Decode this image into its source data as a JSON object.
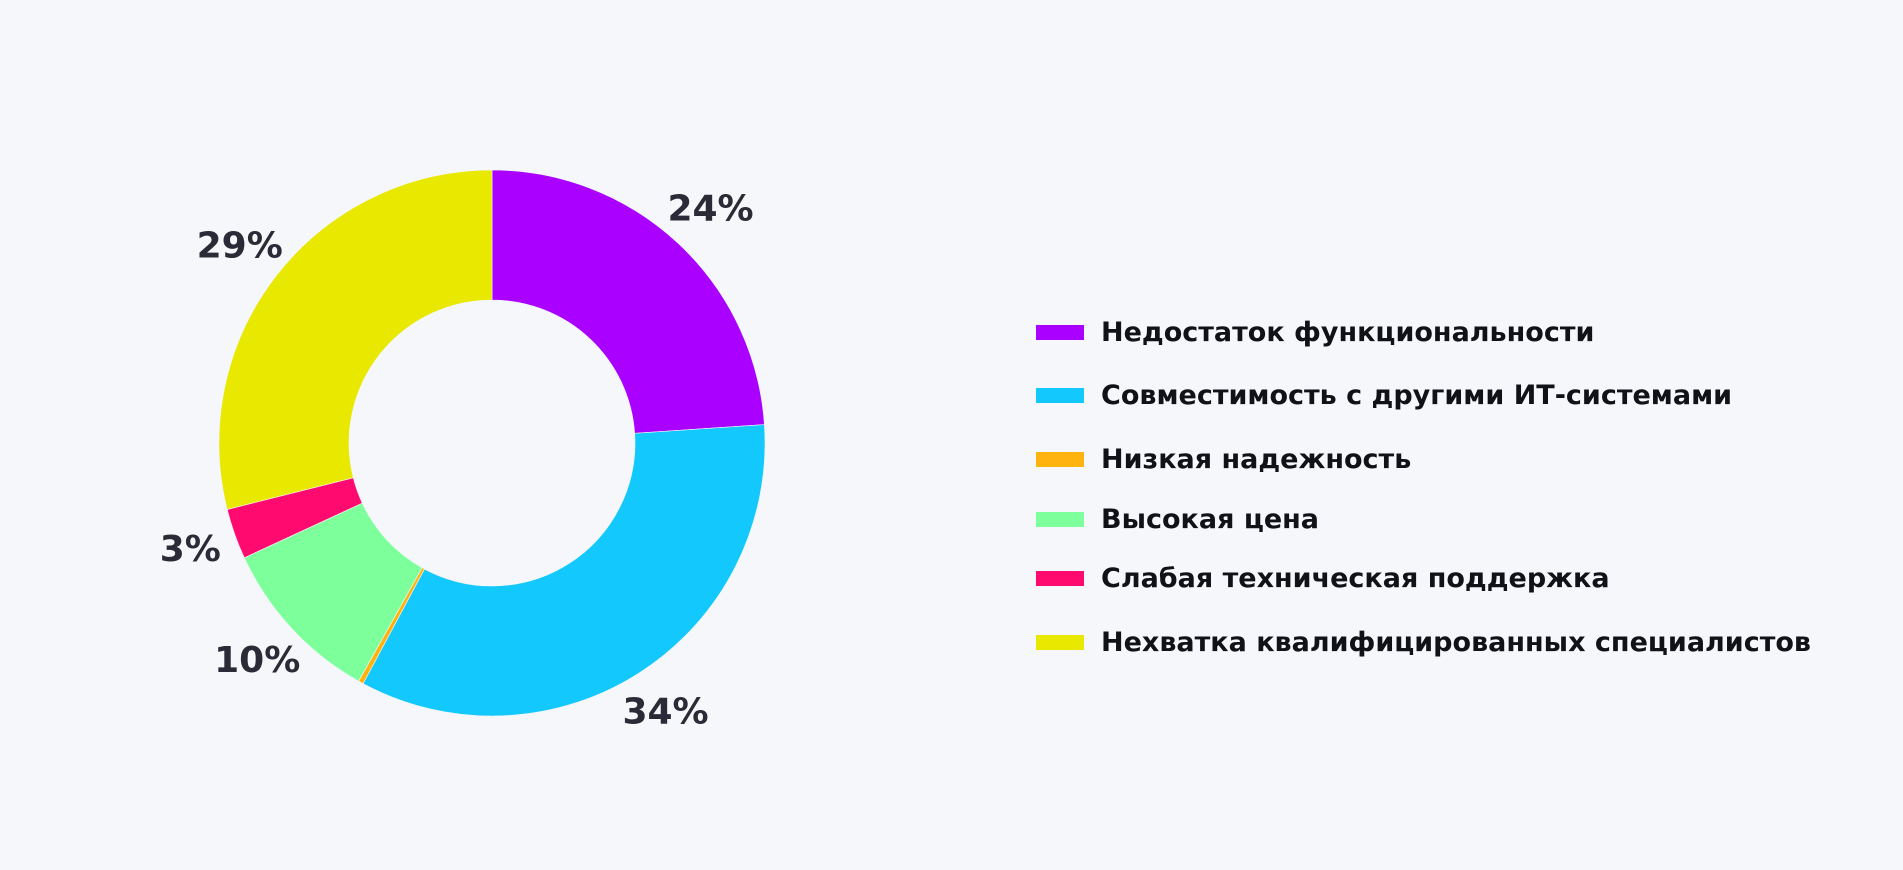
{
  "chart_data": {
    "type": "pie",
    "variant": "donut",
    "order": "clockwise from 12 o'clock",
    "series": [
      {
        "name": "Недостаток функциональности",
        "value": 24,
        "label": "24%",
        "color": "#aa00ff"
      },
      {
        "name": "Совместимость с другими ИТ-системами",
        "value": 34,
        "label": "34%",
        "color": "#12c8fc"
      },
      {
        "name": "Низкая надежность",
        "value": 0.3,
        "label": "",
        "color": "#ffb30f"
      },
      {
        "name": "Высокая цена",
        "value": 10,
        "label": "10%",
        "color": "#7dff9b"
      },
      {
        "name": "Слабая техническая поддержка",
        "value": 3,
        "label": "3%",
        "color": "#ff0a6e"
      },
      {
        "name": "Нехватка квалифицированных специалистов",
        "value": 29,
        "label": "29%",
        "color": "#e8e800"
      }
    ],
    "legend_position": "right"
  }
}
